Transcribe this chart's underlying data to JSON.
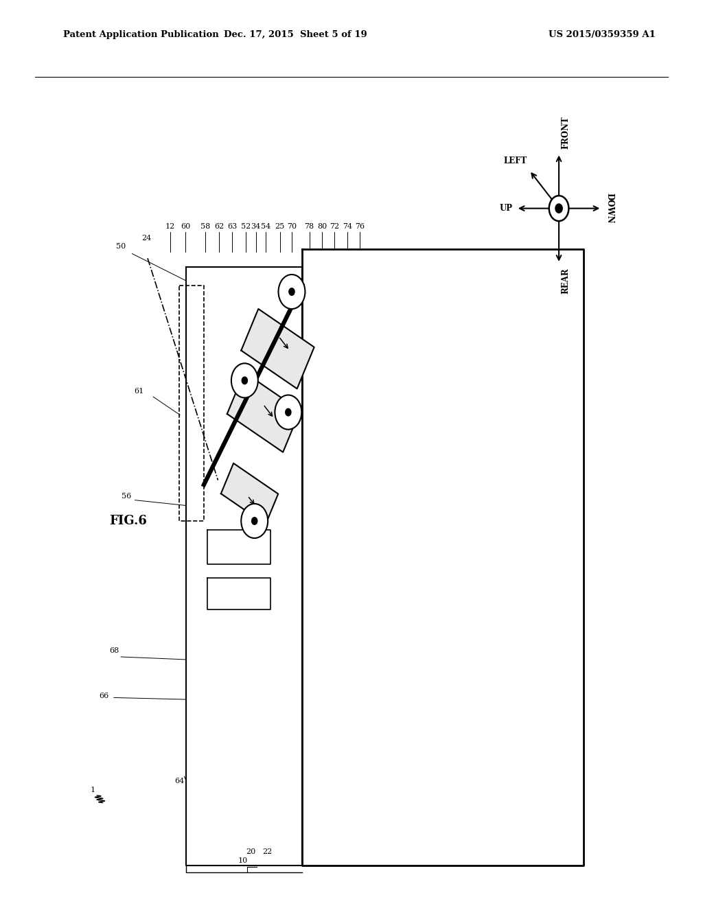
{
  "bg_color": "#ffffff",
  "header_left": "Patent Application Publication",
  "header_center": "Dec. 17, 2015  Sheet 5 of 19",
  "header_right": "US 2015/0359359 A1",
  "fig_label": "FIG.6"
}
